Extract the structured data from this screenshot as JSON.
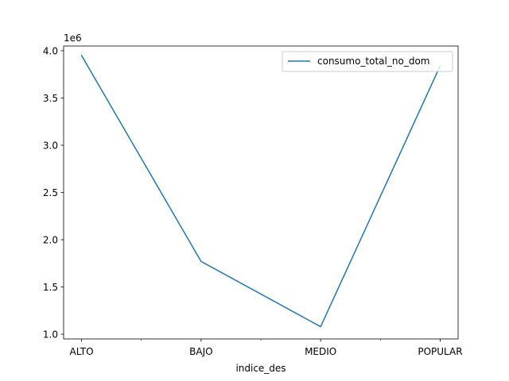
{
  "chart_data": {
    "type": "line",
    "categories": [
      "ALTO",
      "BAJO",
      "MEDIO",
      "POPULAR"
    ],
    "series": [
      {
        "name": "consumo_total_no_dom",
        "values": [
          3950000,
          1770000,
          1080000,
          3840000
        ],
        "color": "#1f77b4"
      }
    ],
    "xlabel": "indice_des",
    "ylabel": "",
    "title": "",
    "ylim": [
      950000,
      4050000
    ],
    "yticks": [
      1000000,
      1500000,
      2000000,
      2500000,
      3000000,
      3500000,
      4000000
    ],
    "ytick_labels": [
      "1.0",
      "1.5",
      "2.0",
      "2.5",
      "3.0",
      "3.5",
      "4.0"
    ],
    "y_offset_label": "1e6",
    "minor_xticks": [
      0.5,
      1.5,
      2.5
    ],
    "legend_position": "upper right",
    "grid": false
  }
}
